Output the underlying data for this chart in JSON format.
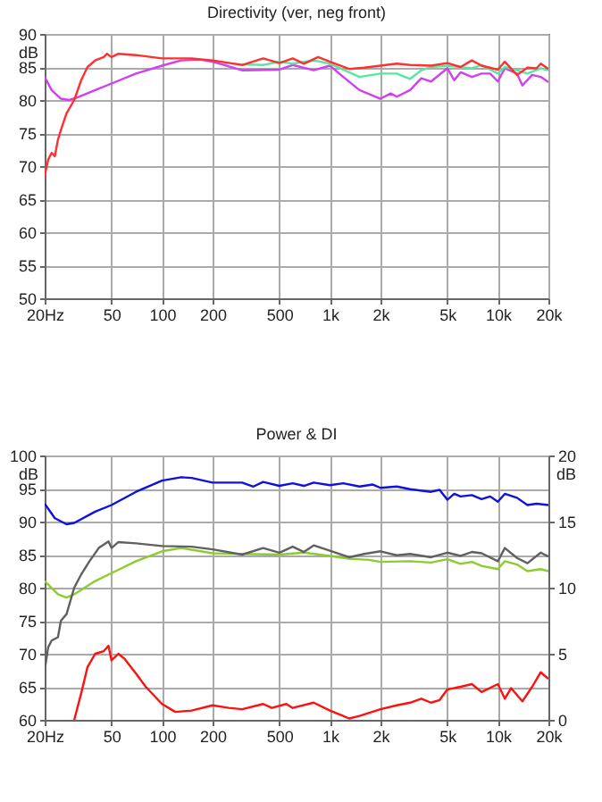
{
  "chart_data": [
    {
      "type": "line",
      "title": "Directivity (ver, neg front)",
      "ylabel": "dB",
      "log": "x",
      "grid": true,
      "line_style": "solid",
      "xlim": [
        20,
        20000
      ],
      "xticks": [
        {
          "value": 20,
          "label": "20Hz"
        },
        50,
        100,
        200,
        500,
        {
          "value": 1000,
          "label": "1k"
        },
        {
          "value": 2000,
          "label": "2k"
        },
        {
          "value": 5000,
          "label": "5k"
        },
        {
          "value": 10000,
          "label": "10k"
        },
        {
          "value": 20000,
          "label": "20k"
        }
      ],
      "ylim": [
        50,
        90
      ],
      "yticks": [
        50,
        55,
        60,
        65,
        70,
        75,
        80,
        85,
        90
      ],
      "series": [
        {
          "color": "#d040f0",
          "x": [
            20,
            22,
            25,
            28,
            32,
            40,
            50,
            70,
            100,
            130,
            170,
            200,
            300,
            500,
            600,
            800,
            1000,
            1200,
            1500,
            2000,
            2300,
            2500,
            3000,
            3500,
            4000,
            5000,
            5500,
            6000,
            7000,
            8000,
            9000,
            10000,
            11000,
            13000,
            14000,
            16000,
            18000,
            20000
          ],
          "values": [
            83.5,
            81.5,
            80.2,
            80,
            80.5,
            81.5,
            82.5,
            84,
            85.2,
            86,
            86.1,
            85.8,
            84.5,
            84.6,
            85.3,
            84.5,
            85.2,
            83.5,
            81.5,
            80.2,
            81,
            80.5,
            81.5,
            83.3,
            82.8,
            84.8,
            83,
            84.2,
            83.5,
            84,
            84,
            82.8,
            84.8,
            84,
            82.2,
            83.8,
            83.5,
            82.7
          ]
        },
        {
          "color": "#55e8a0",
          "x": [
            300,
            400,
            500,
            600,
            800,
            1000,
            1300,
            1500,
            2000,
            2500,
            3000,
            3500,
            4000,
            5000,
            7000,
            8000,
            10000,
            11000,
            13000,
            15000,
            18000,
            20000
          ],
          "values": [
            85.4,
            85.3,
            85.8,
            85.5,
            86,
            85.5,
            84.2,
            83.5,
            84,
            84,
            83.2,
            84.5,
            85,
            85.2,
            84.8,
            85.3,
            84,
            85,
            84.5,
            84,
            84.8,
            84.5
          ]
        },
        {
          "color": "#ff3030",
          "x": [
            20,
            21,
            22,
            23,
            24,
            25,
            27,
            30,
            33,
            36,
            40,
            45,
            47,
            50,
            55,
            70,
            100,
            150,
            200,
            300,
            400,
            500,
            600,
            700,
            850,
            1000,
            1300,
            1600,
            2000,
            2500,
            3000,
            4000,
            5000,
            6000,
            7000,
            8000,
            10000,
            11000,
            13000,
            15000,
            17000,
            18000,
            20000
          ],
          "values": [
            68.5,
            71,
            72,
            71.5,
            74,
            75.5,
            78,
            80,
            83,
            85,
            86,
            86.5,
            87,
            86.5,
            87,
            86.8,
            86.3,
            86.3,
            86,
            85.3,
            86.3,
            85.6,
            86.3,
            85.5,
            86.5,
            85.8,
            84.7,
            84.9,
            85.2,
            85.5,
            85.3,
            85.2,
            85.6,
            85,
            86,
            85.2,
            84.6,
            85.8,
            83.8,
            84.9,
            84.8,
            85.5,
            84.7
          ]
        }
      ]
    },
    {
      "type": "line",
      "title": "Power & DI",
      "ylabel": "dB",
      "y2label": "dB",
      "log": "x",
      "grid": true,
      "line_style": "solid",
      "xlim": [
        20,
        20000
      ],
      "xticks": [
        {
          "value": 20,
          "label": "20Hz"
        },
        50,
        100,
        200,
        500,
        {
          "value": 1000,
          "label": "1k"
        },
        {
          "value": 2000,
          "label": "2k"
        },
        {
          "value": 5000,
          "label": "5k"
        },
        {
          "value": 10000,
          "label": "10k"
        },
        {
          "value": 20000,
          "label": "20k"
        }
      ],
      "ylim": [
        60,
        100
      ],
      "yticks": [
        60,
        65,
        70,
        75,
        80,
        85,
        90,
        95,
        100
      ],
      "y2lim": [
        0,
        20
      ],
      "y2ticks": [
        0,
        5,
        10,
        15,
        20
      ],
      "series": [
        {
          "color": "#1010e0",
          "x": [
            20,
            23,
            27,
            30,
            40,
            50,
            70,
            100,
            130,
            150,
            200,
            300,
            350,
            400,
            500,
            600,
            700,
            800,
            1000,
            1200,
            1500,
            1800,
            2000,
            2500,
            3000,
            4000,
            4500,
            5000,
            5500,
            6000,
            7000,
            8000,
            9000,
            10000,
            11000,
            13000,
            15000,
            17000,
            20000
          ],
          "values": [
            92.7,
            90.5,
            89.6,
            89.8,
            91.5,
            92.5,
            94.5,
            96.2,
            96.7,
            96.6,
            95.9,
            95.9,
            95.3,
            96,
            95.4,
            95.8,
            95.4,
            95.9,
            95.5,
            95.8,
            95.3,
            95.6,
            95.1,
            95.3,
            94.9,
            94.5,
            94.8,
            93.3,
            94.2,
            93.8,
            94,
            93.4,
            93.8,
            93,
            94.2,
            93.6,
            92.5,
            92.7,
            92.5
          ]
        },
        {
          "color": "#8ccc30",
          "x": [
            20,
            24,
            27,
            30,
            40,
            50,
            70,
            100,
            130,
            170,
            200,
            300,
            500,
            700,
            1000,
            1300,
            1700,
            2000,
            3000,
            4000,
            5000,
            6000,
            7000,
            8000,
            10000,
            11000,
            13000,
            15000,
            18000,
            20000
          ],
          "values": [
            81,
            79,
            78.5,
            79,
            81,
            82.2,
            84,
            85.5,
            86,
            85.5,
            85.2,
            85.1,
            85,
            85.3,
            84.8,
            84.4,
            84.2,
            83.9,
            84,
            83.8,
            84.3,
            83.6,
            83.9,
            83.3,
            82.8,
            84,
            83.5,
            82.5,
            82.8,
            82.5
          ]
        },
        {
          "color": "#606060",
          "x": [
            20,
            21,
            22,
            24,
            25,
            27,
            30,
            33,
            37,
            42,
            48,
            50,
            55,
            70,
            100,
            150,
            200,
            300,
            400,
            500,
            600,
            700,
            800,
            1000,
            1300,
            1600,
            2000,
            2500,
            3000,
            4000,
            5000,
            6000,
            7000,
            8000,
            10000,
            11000,
            13000,
            15000,
            18000,
            20000
          ],
          "values": [
            67.5,
            71,
            72,
            72.5,
            75,
            76,
            80,
            82,
            84,
            86,
            87,
            86,
            86.9,
            86.7,
            86.3,
            86.2,
            85.8,
            85,
            86,
            85.3,
            86.2,
            85.4,
            86.4,
            85.6,
            84.6,
            85.1,
            85.5,
            84.9,
            85.1,
            84.6,
            85.3,
            84.8,
            85.4,
            85.2,
            84,
            86,
            84.5,
            83.7,
            85.3,
            84.7
          ]
        },
        {
          "color": "#ff1010",
          "axis": "y2",
          "x": [
            30,
            33,
            36,
            40,
            45,
            48,
            50,
            55,
            60,
            70,
            80,
            100,
            120,
            150,
            200,
            250,
            300,
            400,
            450,
            550,
            600,
            800,
            1000,
            1200,
            1300,
            1500,
            2000,
            2500,
            3000,
            3500,
            4000,
            4500,
            5000,
            6000,
            7000,
            8000,
            10000,
            11000,
            12000,
            14000,
            16000,
            18000,
            20000
          ],
          "values": [
            0,
            2,
            4,
            5,
            5.2,
            5.6,
            4.5,
            5,
            4.6,
            3.5,
            2.5,
            1.2,
            0.6,
            0.7,
            1.1,
            0.9,
            0.8,
            1.2,
            0.9,
            1.2,
            0.9,
            1.3,
            0.7,
            0.3,
            0.1,
            0.3,
            0.8,
            1.1,
            1.3,
            1.6,
            1.3,
            1.5,
            2.3,
            2.5,
            2.7,
            2.1,
            2.7,
            1.6,
            2.4,
            1.4,
            2.5,
            3.6,
            3.1
          ]
        }
      ]
    }
  ]
}
